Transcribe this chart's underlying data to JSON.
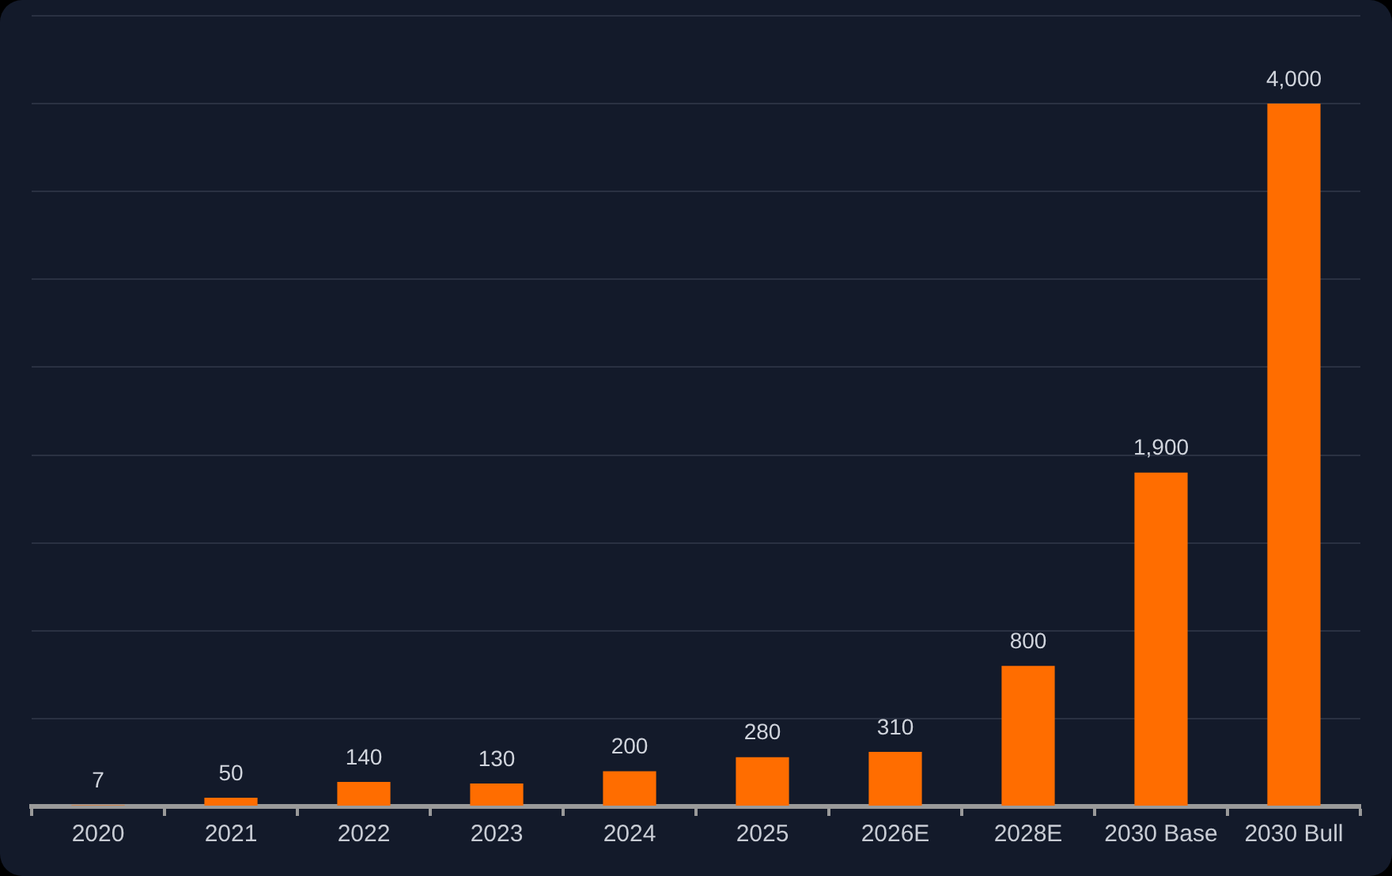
{
  "chart_data": {
    "type": "bar",
    "categories": [
      "2020",
      "2021",
      "2022",
      "2023",
      "2024",
      "2025",
      "2026E",
      "2028E",
      "2030 Base",
      "2030 Bull"
    ],
    "values": [
      7,
      50,
      140,
      130,
      200,
      280,
      310,
      800,
      1900,
      4000
    ],
    "value_labels": [
      "7",
      "50",
      "140",
      "130",
      "200",
      "280",
      "310",
      "800",
      "1,900",
      "4,000"
    ],
    "color": "#ff6d00",
    "ylim": [
      0,
      4500
    ],
    "yticks": [
      {
        "value": 0,
        "label": null
      },
      {
        "value": 500,
        "label": null
      },
      {
        "value": 1000,
        "label": null
      },
      {
        "value": 1500,
        "label": null
      },
      {
        "value": 2000,
        "label": null
      },
      {
        "value": 2500,
        "label": null
      },
      {
        "value": 3000,
        "label": null
      },
      {
        "value": 3500,
        "label": null
      },
      {
        "value": 4000,
        "label": null
      },
      {
        "value": 4500,
        "label": null
      }
    ],
    "grid": "y",
    "tick_labels": "x"
  }
}
